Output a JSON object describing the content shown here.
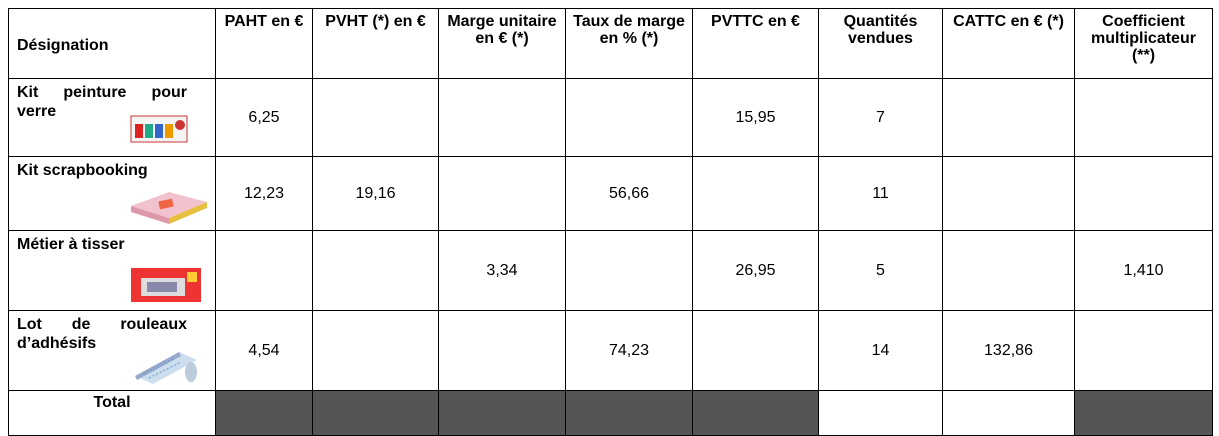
{
  "table": {
    "columns": [
      "Désignation",
      "PAHT en €",
      "PVHT (*) en €",
      "Marge unitaire en € (*)",
      "Taux de marge en % (*)",
      "PVTTC en €",
      "Quantités vendues",
      "CATTC en € (*)",
      "Coefficient multiplicateur (**)"
    ],
    "rows": [
      {
        "designation": "Kit peinture pour verre",
        "cells": [
          "6,25",
          null,
          null,
          null,
          "15,95",
          "7",
          null,
          null
        ]
      },
      {
        "designation": "Kit scrapbooking",
        "cells": [
          "12,23",
          "19,16",
          null,
          "56,66",
          null,
          "11",
          null,
          null
        ]
      },
      {
        "designation": "Métier à tisser",
        "cells": [
          null,
          null,
          "3,34",
          null,
          "26,95",
          "5",
          null,
          "1,410"
        ]
      },
      {
        "designation": "Lot de rouleaux d’adhésifs",
        "cells": [
          "4,54",
          null,
          null,
          "74,23",
          null,
          "14",
          "132,86",
          null
        ]
      }
    ],
    "total": "Total"
  }
}
